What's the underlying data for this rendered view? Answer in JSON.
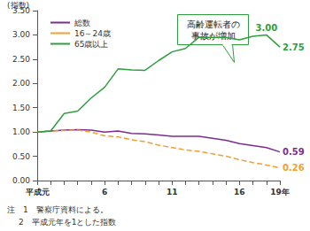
{
  "chart_data": {
    "type": "line",
    "y_label": "(指数)",
    "categories": [
      "平成元",
      null,
      null,
      null,
      null,
      "6",
      null,
      null,
      null,
      null,
      "11",
      null,
      null,
      null,
      null,
      "16",
      null,
      null,
      "19年"
    ],
    "series": [
      {
        "name": "総数",
        "color": "#7b2d8e",
        "line_style": "solid",
        "values": [
          1.0,
          1.02,
          1.04,
          1.05,
          1.04,
          1.0,
          1.02,
          0.97,
          0.96,
          0.94,
          0.91,
          0.91,
          0.91,
          0.87,
          0.83,
          0.76,
          0.72,
          0.68,
          0.59
        ],
        "value_labels": [
          null,
          null,
          null,
          null,
          null,
          null,
          null,
          null,
          null,
          null,
          null,
          null,
          null,
          null,
          null,
          null,
          null,
          null,
          "0.59"
        ]
      },
      {
        "name": "16～24歳",
        "color": "#f0a030",
        "line_style": "dashed",
        "values": [
          1.0,
          1.02,
          1.03,
          1.04,
          1.0,
          0.92,
          0.9,
          0.84,
          0.8,
          0.73,
          0.68,
          0.63,
          0.6,
          0.55,
          0.5,
          0.43,
          0.37,
          0.32,
          0.26
        ],
        "value_labels": [
          null,
          null,
          null,
          null,
          null,
          null,
          null,
          null,
          null,
          null,
          null,
          null,
          null,
          null,
          null,
          null,
          null,
          null,
          "0.26"
        ]
      },
      {
        "name": "65歳以上",
        "color": "#2e9e3e",
        "line_style": "solid",
        "values": [
          1.0,
          1.02,
          1.38,
          1.43,
          1.7,
          1.92,
          2.3,
          2.28,
          2.27,
          2.47,
          2.65,
          2.72,
          2.95,
          2.95,
          2.95,
          2.9,
          2.97,
          3.0,
          2.75
        ],
        "value_labels": [
          null,
          null,
          null,
          null,
          null,
          null,
          null,
          null,
          null,
          null,
          null,
          null,
          null,
          null,
          null,
          null,
          null,
          "3.00",
          "2.75"
        ]
      }
    ],
    "ylim": [
      0,
      3.5
    ],
    "yticks": [
      {
        "value": 0,
        "label": "0.00"
      },
      {
        "value": 0.5,
        "label": "0.50"
      },
      {
        "value": 1,
        "label": "1.00"
      },
      {
        "value": 1.5,
        "label": "1.50"
      },
      {
        "value": 2,
        "label": "2.00"
      },
      {
        "value": 2.5,
        "label": "2.50"
      },
      {
        "value": 3,
        "label": "3.00"
      },
      {
        "value": 3.5,
        "label": "3.50"
      }
    ],
    "grid": false,
    "legend": "upper left",
    "data_labels": true,
    "annotations": [
      {
        "lines": [
          "高齢運転者の",
          "事故が増加"
        ]
      }
    ],
    "notes": [
      "注　1　警察庁資料による。",
      "2　平成元年を1とした指数"
    ]
  }
}
